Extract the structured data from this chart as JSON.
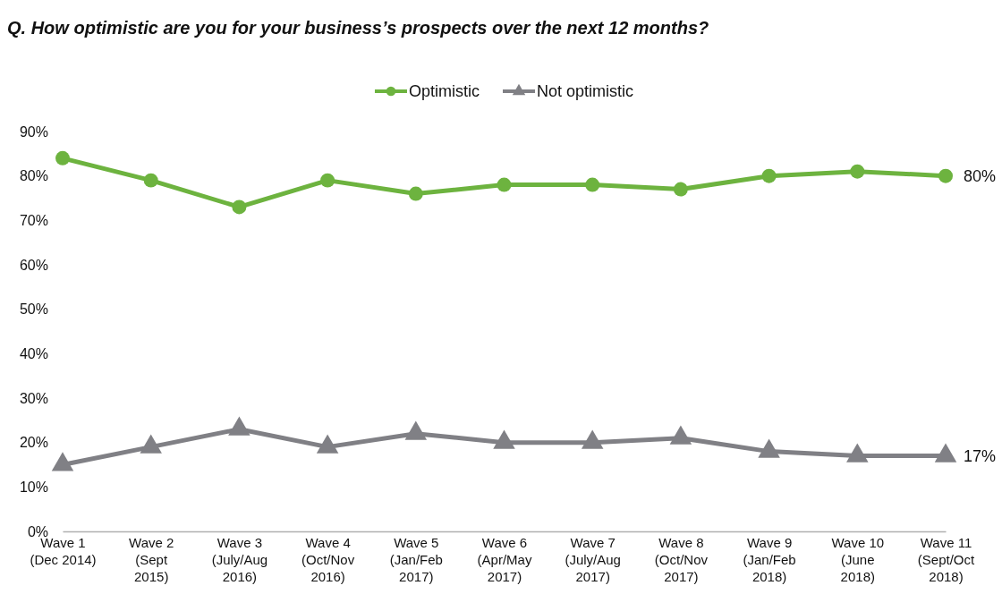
{
  "chart_data": {
    "type": "line",
    "title": "Q. How optimistic are you for your business’s prospects over the next 12 months?",
    "categories": [
      "Wave 1 (Dec 2014)",
      "Wave 2 (Sept 2015)",
      "Wave 3 (July/Aug 2016)",
      "Wave 4 (Oct/Nov 2016)",
      "Wave 5 (Jan/Feb 2017)",
      "Wave 6 (Apr/May 2017)",
      "Wave 7 (July/Aug 2017)",
      "Wave 8 (Oct/Nov 2017)",
      "Wave 9 (Jan/Feb 2018)",
      "Wave 10 (June 2018)",
      "Wave 11 (Sept/Oct 2018)"
    ],
    "series": [
      {
        "name": "Optimistic",
        "color": "#6db33f",
        "marker": "circle",
        "values": [
          84,
          79,
          73,
          79,
          76,
          78,
          78,
          77,
          80,
          81,
          80
        ],
        "value_labels": [
          null,
          null,
          null,
          null,
          null,
          null,
          null,
          null,
          null,
          null,
          "80%"
        ]
      },
      {
        "name": "Not optimistic",
        "color": "#808085",
        "marker": "triangle",
        "values": [
          15,
          19,
          23,
          19,
          22,
          20,
          20,
          21,
          18,
          17,
          17
        ],
        "value_labels": [
          null,
          null,
          null,
          null,
          null,
          null,
          null,
          null,
          null,
          null,
          "17%"
        ]
      }
    ],
    "ylim": [
      0,
      90
    ],
    "yticks": [
      {
        "value": 0,
        "label": "0%"
      },
      {
        "value": 10,
        "label": "10%"
      },
      {
        "value": 20,
        "label": "20%"
      },
      {
        "value": 30,
        "label": "30%"
      },
      {
        "value": 40,
        "label": "40%"
      },
      {
        "value": 50,
        "label": "50%"
      },
      {
        "value": 60,
        "label": "60%"
      },
      {
        "value": 70,
        "label": "70%"
      },
      {
        "value": 80,
        "label": "80%"
      },
      {
        "value": 90,
        "label": "90%"
      }
    ],
    "grid": false,
    "legend": "top",
    "line_style": "solid"
  }
}
